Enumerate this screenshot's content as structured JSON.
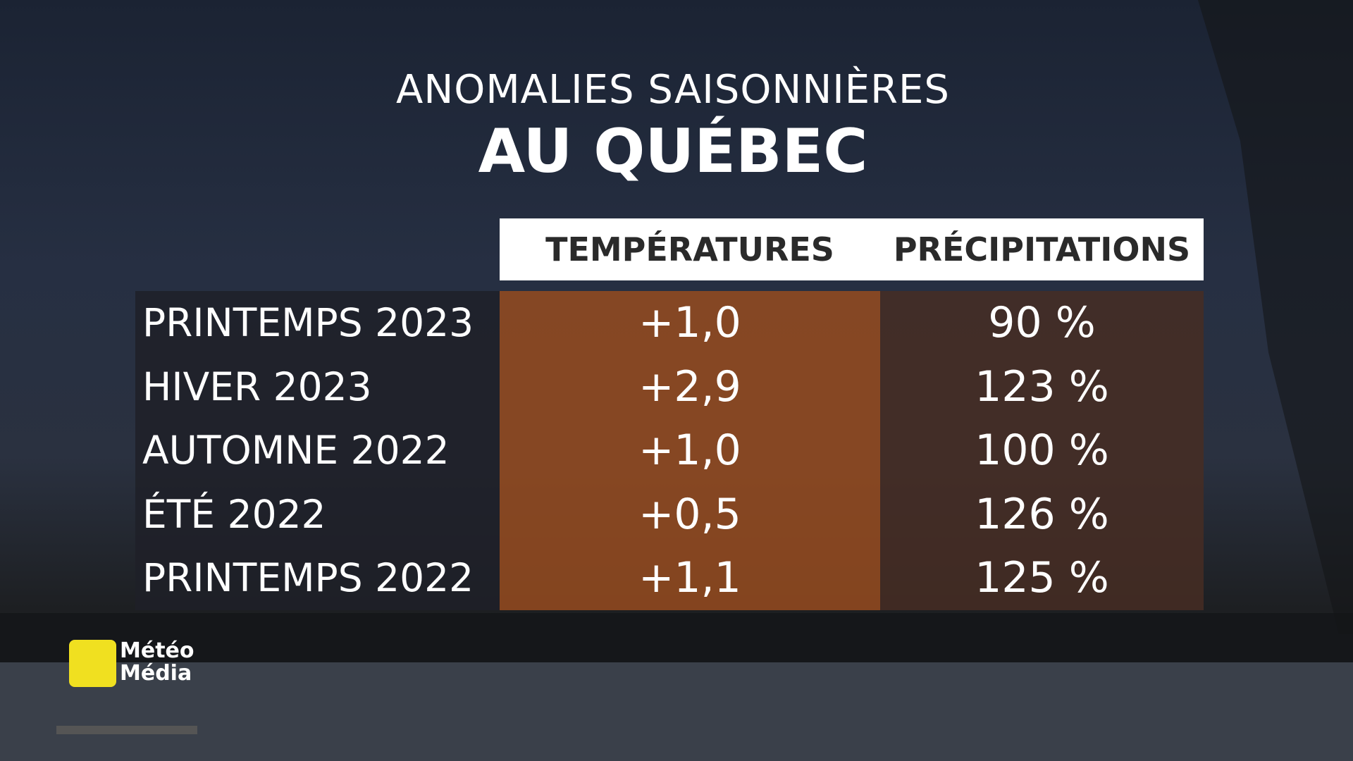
{
  "header": {
    "title": "ANOMALIES SAISONNIÈRES",
    "subtitle": "AU QUÉBEC"
  },
  "table": {
    "columns": [
      "TEMPÉRATURES",
      "PRÉCIPITATIONS"
    ],
    "rows": [
      [
        "PRINTEMPS 2023",
        "+1,0",
        "90 %"
      ],
      [
        "HIVER 2023",
        "+2,9",
        "123 %"
      ],
      [
        "AUTOMNE 2022",
        "+1,0",
        "100 %"
      ],
      [
        "ÉTÉ 2022",
        "+0,5",
        "126 %"
      ],
      [
        "PRINTEMPS 2022",
        "+1,1",
        "125 %"
      ]
    ]
  },
  "logo": [
    "Météo",
    "Média"
  ]
}
